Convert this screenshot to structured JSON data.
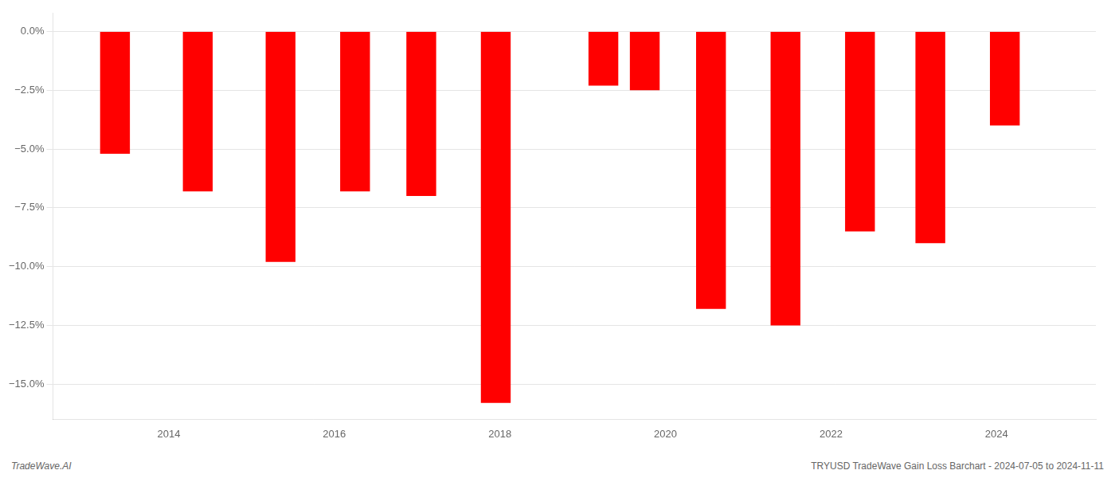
{
  "chart_data": {
    "type": "bar",
    "x": [
      2013.35,
      2014.35,
      2015.35,
      2016.25,
      2017.05,
      2017.95,
      2019.25,
      2019.75,
      2020.55,
      2021.45,
      2022.35,
      2023.2,
      2024.1
    ],
    "values": [
      -5.2,
      -6.8,
      -9.8,
      -6.8,
      -7.0,
      -15.8,
      -2.3,
      -2.5,
      -11.8,
      -12.5,
      -8.5,
      -9.0,
      -4.0
    ],
    "color": "#ff0000",
    "xlim": [
      2012.6,
      2025.2
    ],
    "xticks": [
      2014,
      2016,
      2018,
      2020,
      2022,
      2024
    ],
    "ylim": [
      -16.5,
      0.8
    ],
    "yticks": [
      {
        "value": 0.0,
        "label": "0.0%"
      },
      {
        "value": -2.5,
        "label": "−2.5%"
      },
      {
        "value": -5.0,
        "label": "−5.0%"
      },
      {
        "value": -7.5,
        "label": "−7.5%"
      },
      {
        "value": -10.0,
        "label": "−10.0%"
      },
      {
        "value": -12.5,
        "label": "−12.5%"
      },
      {
        "value": -15.0,
        "label": "−15.0%"
      }
    ],
    "grid": "y",
    "annotations": [
      "TradeWave.AI",
      "TRYUSD TradeWave Gain Loss Barchart - 2024-07-05 to 2024-11-11"
    ]
  }
}
